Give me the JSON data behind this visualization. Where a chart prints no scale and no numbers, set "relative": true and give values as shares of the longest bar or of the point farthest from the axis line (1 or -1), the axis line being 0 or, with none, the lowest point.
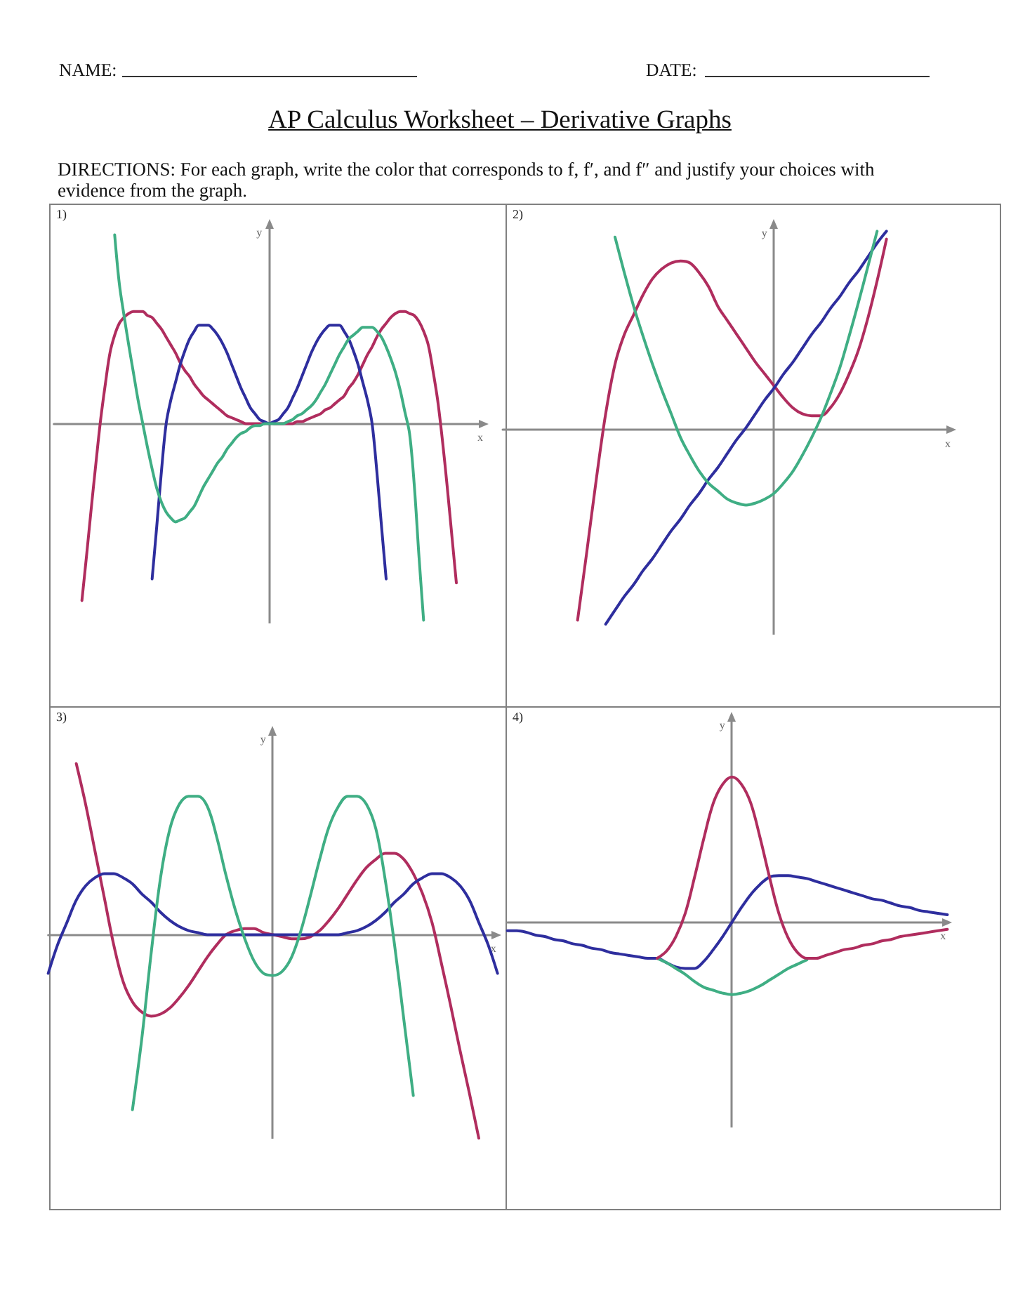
{
  "chart_data": [
    {
      "type": "other",
      "title": "AP Calculus Worksheet – Derivative Graphs",
      "subtitle": "DIRECTIONS: For each graph, write the color that corresponds to f, f′, and f″ and justify your choices with evidence from the graph.",
      "annotations": [
        "NAME:",
        "DATE:"
      ]
    },
    {
      "type": "line",
      "title": "1)",
      "xlabel": "x",
      "ylabel": "y",
      "relative": true,
      "marker": "none",
      "categories": [
        null,
        null,
        null,
        null,
        null,
        null,
        null,
        null,
        null,
        null,
        null,
        null,
        null,
        null,
        null,
        null,
        null,
        null,
        null,
        null,
        null,
        null,
        null,
        null,
        null,
        null,
        null,
        null,
        null,
        null,
        null,
        null,
        null,
        null,
        null,
        null,
        null,
        null,
        null,
        null,
        null,
        null,
        null,
        null,
        null,
        null,
        null,
        null,
        null,
        null,
        null,
        null,
        null,
        null,
        null,
        null,
        null,
        null,
        null,
        null,
        null,
        null,
        null,
        null,
        null,
        null,
        null,
        null,
        null,
        null,
        null,
        null,
        null,
        null,
        null,
        null,
        null,
        null,
        null,
        null,
        null,
        null,
        null,
        null,
        null,
        null,
        null,
        null,
        null,
        null,
        null,
        null,
        null
      ],
      "series": [
        {
          "color": "#b02d5e",
          "values": [
            null,
            null,
            null,
            null,
            null,
            null,
            -0.9,
            -0.67,
            -0.43,
            -0.2,
            0.02,
            0.2,
            0.36,
            0.45,
            0.51,
            0.54,
            0.56,
            0.57,
            0.57,
            0.57,
            0.55,
            0.54,
            0.51,
            0.48,
            0.44,
            0.4,
            0.36,
            0.31,
            0.27,
            0.24,
            0.2,
            0.17,
            0.14,
            0.12,
            0.1,
            0.08,
            0.06,
            0.04,
            0.03,
            0.02,
            0.01,
            0,
            0,
            0,
            0,
            0,
            null,
            0,
            0,
            0,
            0,
            0,
            0.01,
            0.01,
            0.02,
            0.03,
            0.04,
            0.05,
            0.07,
            0.08,
            0.1,
            0.12,
            0.14,
            0.18,
            0.21,
            0.25,
            0.3,
            0.35,
            0.39,
            0.44,
            0.48,
            0.51,
            0.54,
            0.56,
            0.57,
            0.57,
            0.56,
            0.55,
            0.52,
            0.47,
            0.4,
            0.27,
            0.12,
            -0.08,
            -0.31,
            -0.56,
            -0.81,
            null,
            null,
            null,
            null,
            null,
            null
          ]
        },
        {
          "color": "#2e2e9e",
          "values": [
            null,
            null,
            null,
            null,
            null,
            null,
            null,
            null,
            null,
            null,
            null,
            null,
            null,
            null,
            null,
            null,
            null,
            null,
            null,
            null,
            null,
            -0.79,
            -0.52,
            -0.24,
            0,
            0.12,
            0.21,
            0.3,
            0.37,
            0.43,
            0.47,
            0.5,
            0.5,
            0.5,
            0.48,
            0.45,
            0.41,
            0.36,
            0.3,
            0.24,
            0.18,
            0.13,
            0.08,
            0.05,
            0.02,
            0.01,
            0,
            0.01,
            0.02,
            0.05,
            0.08,
            0.13,
            0.18,
            0.24,
            0.3,
            0.36,
            0.41,
            0.45,
            0.48,
            0.5,
            0.5,
            0.5,
            0.47,
            0.43,
            0.37,
            0.3,
            0.21,
            0.12,
            0,
            -0.24,
            -0.52,
            -0.79,
            null,
            null,
            null,
            null,
            null,
            null,
            null,
            null,
            null,
            null,
            null,
            null,
            null,
            null,
            null,
            null,
            null,
            null,
            null,
            null,
            null
          ]
        },
        {
          "color": "#3fae84",
          "values": [
            null,
            null,
            null,
            null,
            null,
            null,
            null,
            null,
            null,
            null,
            null,
            null,
            null,
            0.96,
            0.71,
            0.55,
            0.4,
            0.26,
            0.12,
            0,
            -0.12,
            -0.23,
            -0.33,
            -0.4,
            -0.45,
            -0.48,
            -0.5,
            -0.49,
            -0.48,
            -0.45,
            -0.42,
            -0.37,
            -0.32,
            -0.28,
            -0.24,
            -0.2,
            -0.17,
            -0.13,
            -0.1,
            -0.07,
            -0.05,
            -0.04,
            -0.02,
            -0.01,
            -0.01,
            0,
            0,
            0,
            0,
            0,
            0.01,
            0.02,
            0.04,
            0.05,
            0.07,
            0.09,
            0.12,
            0.16,
            0.2,
            0.25,
            0.3,
            0.35,
            0.39,
            0.43,
            0.45,
            0.47,
            0.49,
            0.49,
            0.49,
            0.47,
            0.44,
            0.39,
            0.33,
            0.26,
            0.17,
            0.06,
            -0.05,
            -0.31,
            -0.67,
            -1,
            null,
            null,
            null,
            null,
            null,
            null,
            null,
            null,
            null,
            null,
            null,
            null,
            null
          ]
        }
      ]
    },
    {
      "type": "line",
      "title": "2)",
      "xlabel": "x",
      "ylabel": "y",
      "relative": true,
      "marker": "none",
      "categories": [
        null,
        null,
        null,
        null,
        null,
        null,
        null,
        null,
        null,
        null,
        null,
        null,
        null,
        null,
        null,
        null,
        null,
        null,
        null,
        null,
        null,
        null,
        null,
        null,
        null,
        null,
        null,
        null,
        null,
        null,
        null,
        null,
        null,
        null,
        null,
        null,
        null,
        null,
        null,
        null,
        null,
        null,
        null,
        null,
        null,
        null,
        null,
        null,
        null
      ],
      "series": [
        {
          "color": "#b02d5e",
          "values": [
            null,
            null,
            null,
            null,
            null,
            null,
            null,
            null,
            -0.96,
            -0.61,
            -0.25,
            0.08,
            0.33,
            0.48,
            0.58,
            0.68,
            0.76,
            0.81,
            0.84,
            0.85,
            0.84,
            0.79,
            0.72,
            0.62,
            0.55,
            0.48,
            0.41,
            0.34,
            0.28,
            0.22,
            0.16,
            0.11,
            0.08,
            0.07,
            0.07,
            0.11,
            0.18,
            0.28,
            0.4,
            0.56,
            0.75,
            0.96,
            null,
            null,
            null,
            null,
            null,
            null,
            null
          ]
        },
        {
          "color": "#2e2e9e",
          "values": [
            null,
            null,
            null,
            null,
            null,
            null,
            null,
            null,
            null,
            null,
            null,
            -0.98,
            -0.91,
            -0.84,
            -0.78,
            -0.71,
            -0.65,
            -0.58,
            -0.51,
            -0.45,
            -0.38,
            -0.32,
            -0.25,
            -0.19,
            -0.12,
            -0.05,
            0.01,
            0.08,
            0.15,
            0.21,
            0.28,
            0.34,
            0.41,
            0.48,
            0.54,
            0.61,
            0.67,
            0.74,
            0.8,
            0.87,
            0.94,
            1,
            null,
            null,
            null,
            null,
            null,
            null,
            null
          ]
        },
        {
          "color": "#3fae84",
          "values": [
            null,
            null,
            null,
            null,
            null,
            null,
            null,
            null,
            null,
            null,
            null,
            null,
            0.97,
            0.79,
            0.62,
            0.47,
            0.33,
            0.2,
            0.08,
            -0.04,
            -0.13,
            -0.21,
            -0.27,
            -0.31,
            -0.35,
            -0.37,
            -0.38,
            -0.37,
            -0.35,
            -0.32,
            -0.27,
            -0.21,
            -0.13,
            -0.04,
            0.06,
            0.18,
            0.31,
            0.47,
            0.64,
            0.82,
            1,
            null,
            null,
            null,
            null,
            null,
            null,
            null,
            null
          ]
        }
      ]
    },
    {
      "type": "line",
      "title": "3)",
      "xlabel": "x",
      "ylabel": "y",
      "relative": true,
      "marker": "none",
      "categories": [
        null,
        null,
        null,
        null,
        null,
        null,
        null,
        null,
        null,
        null,
        null,
        null,
        null,
        null,
        null,
        null,
        null,
        null,
        null,
        null,
        null,
        null,
        null,
        null,
        null,
        null,
        null,
        null,
        null,
        null,
        null,
        null,
        null,
        null,
        null,
        null,
        null,
        null,
        null,
        null,
        null,
        null,
        null,
        null,
        null,
        null,
        null,
        null,
        null
      ],
      "series": [
        {
          "color": "#b02d5e",
          "values": [
            null,
            null,
            null,
            0.84,
            0.64,
            0.41,
            0.18,
            -0.05,
            -0.23,
            -0.33,
            -0.38,
            -0.4,
            -0.39,
            -0.36,
            -0.31,
            -0.25,
            -0.18,
            -0.11,
            -0.05,
            0,
            0.02,
            0.03,
            0.03,
            0.01,
            0,
            -0.01,
            -0.02,
            -0.02,
            -0.01,
            0.02,
            0.07,
            0.13,
            0.2,
            0.27,
            0.33,
            0.37,
            0.4,
            0.4,
            0.37,
            0.3,
            0.2,
            0.06,
            -0.14,
            -0.35,
            -0.57,
            -0.78,
            -1,
            null,
            null
          ]
        },
        {
          "color": "#2e2e9e",
          "values": [
            -0.19,
            -0.05,
            0.06,
            0.17,
            0.24,
            0.28,
            0.3,
            0.3,
            0.28,
            0.25,
            0.2,
            0.16,
            0.11,
            0.07,
            0.04,
            0.02,
            0.01,
            0,
            0,
            0,
            0,
            0,
            0,
            0,
            0,
            0,
            0,
            0,
            0,
            0,
            0,
            0,
            0.01,
            0.02,
            0.04,
            0.07,
            0.11,
            0.16,
            0.2,
            0.25,
            0.28,
            0.3,
            0.3,
            0.28,
            0.24,
            0.17,
            0.06,
            -0.05,
            -0.19
          ]
        },
        {
          "color": "#3fae84",
          "values": [
            null,
            null,
            null,
            null,
            null,
            null,
            null,
            null,
            null,
            -0.86,
            -0.51,
            -0.09,
            0.28,
            0.52,
            0.64,
            0.68,
            0.68,
            0.63,
            0.48,
            0.29,
            0.12,
            -0.02,
            -0.13,
            -0.19,
            -0.2,
            -0.18,
            -0.11,
            0.02,
            0.19,
            0.37,
            0.53,
            0.63,
            0.68,
            0.68,
            0.64,
            0.52,
            0.27,
            -0.05,
            -0.42,
            -0.79,
            null,
            null,
            null,
            null,
            null,
            null,
            null,
            null,
            null
          ]
        }
      ]
    },
    {
      "type": "line",
      "title": "4)",
      "xlabel": "x",
      "ylabel": "y",
      "relative": true,
      "marker": "none",
      "categories": [
        null,
        null,
        null,
        null,
        null,
        null,
        null,
        null,
        null,
        null,
        null,
        null,
        null,
        null,
        null,
        null,
        null,
        null,
        null,
        null,
        null,
        null,
        null,
        null,
        null,
        null,
        null,
        null,
        null,
        null,
        null,
        null,
        null,
        null,
        null,
        null,
        null,
        null,
        null,
        null,
        null,
        null,
        null,
        null,
        null,
        null,
        null,
        null
      ],
      "series": [
        {
          "color": "#2e2e9e",
          "values": [
            -0.06,
            -0.06,
            -0.07,
            -0.09,
            -0.1,
            -0.12,
            -0.13,
            -0.15,
            -0.16,
            -0.18,
            -0.19,
            -0.21,
            -0.22,
            -0.23,
            -0.24,
            -0.25,
            -0.25,
            -0.28,
            -0.31,
            -0.32,
            -0.32,
            -0.27,
            -0.19,
            -0.1,
            0,
            0.1,
            0.19,
            0.26,
            0.31,
            0.32,
            0.32,
            0.31,
            0.3,
            0.28,
            0.26,
            0.24,
            0.22,
            0.2,
            0.18,
            0.16,
            0.15,
            0.13,
            0.11,
            0.1,
            0.08,
            0.07,
            0.06,
            0.05
          ]
        },
        {
          "color": "#3fae84",
          "values": [
            null,
            null,
            null,
            null,
            null,
            null,
            null,
            null,
            null,
            null,
            null,
            null,
            null,
            null,
            null,
            null,
            -0.25,
            -0.28,
            -0.32,
            -0.36,
            -0.41,
            -0.45,
            -0.47,
            -0.49,
            -0.5,
            -0.49,
            -0.47,
            -0.44,
            -0.4,
            -0.36,
            -0.32,
            -0.29,
            -0.26,
            null,
            null,
            null,
            null,
            null,
            null,
            null,
            null,
            null,
            null,
            null,
            null,
            null,
            null,
            null
          ]
        },
        {
          "color": "#b02d5e",
          "values": [
            null,
            null,
            null,
            null,
            null,
            null,
            null,
            null,
            null,
            null,
            null,
            null,
            null,
            null,
            null,
            null,
            -0.25,
            -0.2,
            -0.1,
            0.06,
            0.31,
            0.58,
            0.82,
            0.95,
            1,
            0.95,
            0.82,
            0.58,
            0.31,
            0.06,
            -0.11,
            -0.21,
            -0.25,
            -0.25,
            -0.23,
            -0.21,
            -0.19,
            -0.18,
            -0.16,
            -0.15,
            -0.13,
            -0.12,
            -0.1,
            -0.09,
            -0.08,
            -0.07,
            -0.06,
            -0.05
          ]
        }
      ]
    }
  ]
}
